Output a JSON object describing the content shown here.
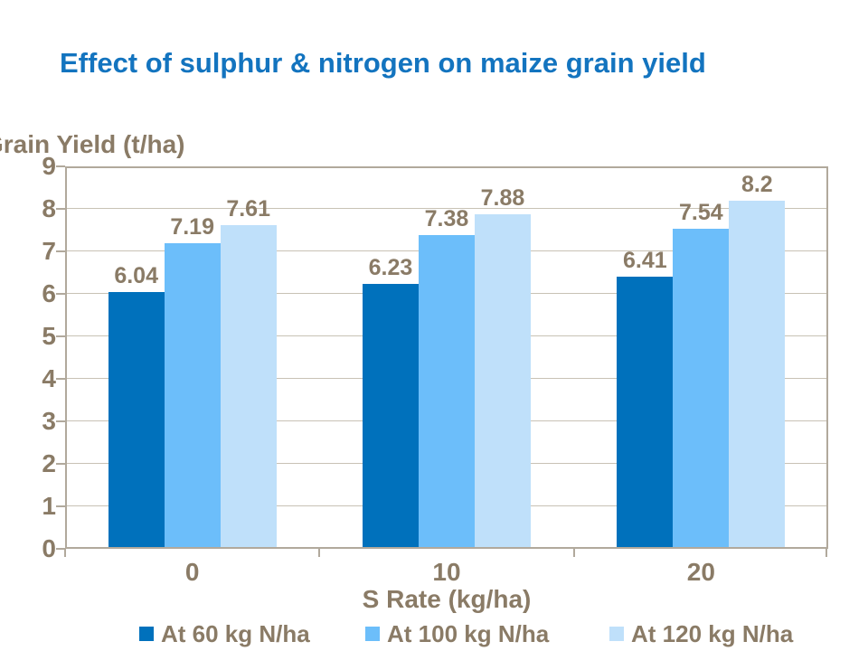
{
  "title": "Effect of sulphur & nitrogen on maize grain yield",
  "chart_data": {
    "type": "bar",
    "title": "Effect of sulphur & nitrogen on maize grain yield",
    "categories": [
      "0",
      "10",
      "20"
    ],
    "series": [
      {
        "name": "At 60 kg N/ha",
        "color": "#0071bc",
        "values": [
          6.04,
          6.23,
          6.41
        ]
      },
      {
        "name": "At 100 kg N/ha",
        "color": "#6cbefa",
        "values": [
          7.19,
          7.38,
          7.54
        ]
      },
      {
        "name": "At 120 kg N/ha",
        "color": "#bfe0fa",
        "values": [
          7.61,
          7.88,
          8.2
        ]
      }
    ],
    "data_labels": [
      [
        "6.04",
        "6.23",
        "6.41"
      ],
      [
        "7.19",
        "7.38",
        "7.54"
      ],
      [
        "7.61",
        "7.88",
        "8.2"
      ]
    ],
    "xlabel": "S Rate (kg/ha)",
    "ylabel": "Grain Yield (t/ha)",
    "ylim": [
      0,
      9
    ],
    "ytick_step": 1,
    "yticks": [
      "0",
      "1",
      "2",
      "3",
      "4",
      "5",
      "6",
      "7",
      "8",
      "9"
    ],
    "grid": true,
    "legend_position": "bottom"
  },
  "colors": {
    "title_text": "#1374bf",
    "chart_text": "#8a7b66",
    "axis_line": "#b1a99c",
    "gridline": "#c8c2b5",
    "background": "#ffffff"
  }
}
